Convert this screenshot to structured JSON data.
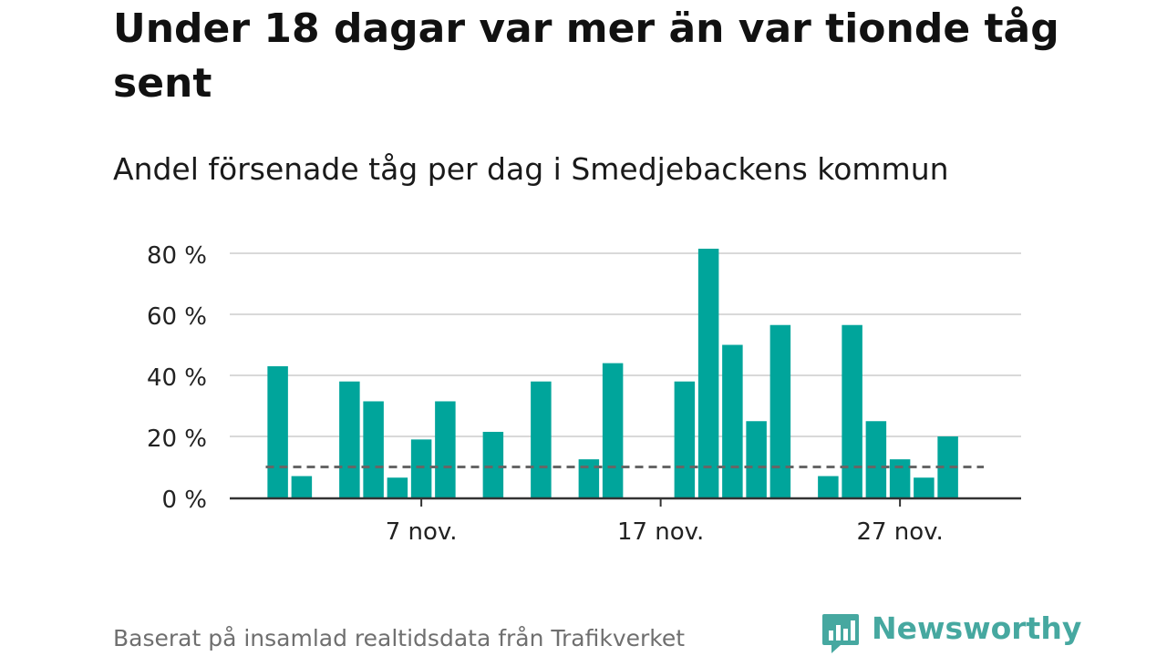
{
  "title": "Under 18 dagar var mer än var tionde tåg sent",
  "subtitle": "Andel försenade tåg per dag i Smedjebackens kommun",
  "footer": "Baserat på insamlad realtidsdata från Trafikverket",
  "brand": {
    "name": "Newsworthy",
    "icon": "newsworthy-logo-icon",
    "color": "#46a8a0"
  },
  "colors": {
    "bar": "#00a59b",
    "reference_line": "#666666",
    "grid": "#d9d9d9",
    "axis": "#333333"
  },
  "chart_data": {
    "type": "bar",
    "x": [
      "1 nov.",
      "2 nov.",
      "3 nov.",
      "4 nov.",
      "5 nov.",
      "6 nov.",
      "7 nov.",
      "8 nov.",
      "9 nov.",
      "10 nov.",
      "11 nov.",
      "12 nov.",
      "13 nov.",
      "14 nov.",
      "15 nov.",
      "16 nov.",
      "17 nov.",
      "18 nov.",
      "19 nov.",
      "20 nov.",
      "21 nov.",
      "22 nov.",
      "23 nov.",
      "24 nov.",
      "25 nov.",
      "26 nov.",
      "27 nov.",
      "28 nov.",
      "29 nov.",
      "30 nov."
    ],
    "values": [
      43,
      7,
      0,
      38,
      31.5,
      6.5,
      19,
      31.5,
      0,
      21.5,
      0,
      38,
      0,
      12.5,
      44,
      0,
      0,
      38,
      81.5,
      50,
      25,
      56.5,
      0,
      7,
      56.5,
      25,
      12.5,
      6.5,
      20,
      0
    ],
    "reference_line": 10,
    "ylim": [
      0,
      80
    ],
    "yticks": [
      0,
      20,
      40,
      60,
      80
    ],
    "ytick_labels": [
      "0 %",
      "20 %",
      "40 %",
      "60 %",
      "80 %"
    ],
    "xtick_labels": [
      "7 nov.",
      "17 nov.",
      "27 nov."
    ],
    "xtick_indices": [
      6,
      16,
      26
    ],
    "grid": true,
    "legend": "none"
  }
}
